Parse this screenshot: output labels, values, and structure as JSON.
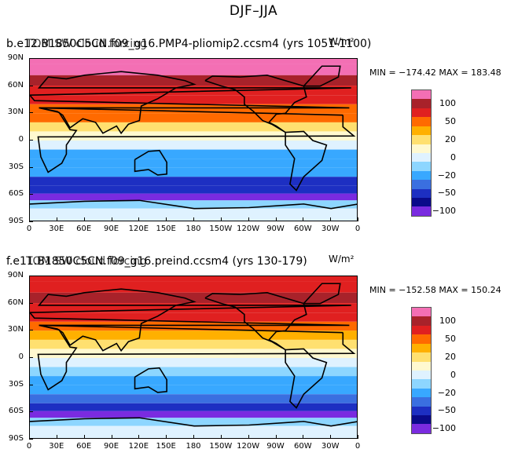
{
  "figure_title": "DJF–JJA",
  "chart_data": [
    {
      "type": "heatmap",
      "title_left": "b.e12.B1850C5CN.f09_g16.PMP4-pliomip2.ccsm4 (yrs 1051-1100)",
      "title_overlay": "TOM SW cloud forcing",
      "title_right": "W/m²",
      "min": -174.42,
      "max": 183.48,
      "min_label": "MIN = −174.42  MAX = 183.48",
      "x_ticks": [
        "0",
        "30E",
        "60E",
        "90E",
        "120E",
        "150E",
        "180",
        "150W",
        "120W",
        "90W",
        "60W",
        "30W",
        "0"
      ],
      "y_ticks": [
        "90N",
        "60N",
        "30N",
        "0",
        "30S",
        "60S",
        "90S"
      ],
      "zonal_bands": [
        {
          "lat": 90,
          "value": 150
        },
        {
          "lat": 78,
          "value": 120
        },
        {
          "lat": 66,
          "value": 90
        },
        {
          "lat": 55,
          "value": 75
        },
        {
          "lat": 45,
          "value": 70
        },
        {
          "lat": 35,
          "value": 45
        },
        {
          "lat": 25,
          "value": 35
        },
        {
          "lat": 15,
          "value": 15
        },
        {
          "lat": 5,
          "value": 5
        },
        {
          "lat": -5,
          "value": -10
        },
        {
          "lat": -15,
          "value": -25
        },
        {
          "lat": -25,
          "value": -30
        },
        {
          "lat": -35,
          "value": -35
        },
        {
          "lat": -45,
          "value": -55
        },
        {
          "lat": -55,
          "value": -80
        },
        {
          "lat": -62,
          "value": -120
        },
        {
          "lat": -70,
          "value": -20
        },
        {
          "lat": -80,
          "value": -5
        }
      ]
    },
    {
      "type": "heatmap",
      "title_left": "f.e11.B1850C5CN.f09_g16.preind.ccsm4 (yrs 130-179)",
      "title_overlay": "TOM SW cloud forcing",
      "title_right": "W/m²",
      "min": -152.58,
      "max": 150.24,
      "min_label": "MIN = −152.58  MAX = 150.24",
      "x_ticks": [
        "0",
        "30E",
        "60E",
        "90E",
        "120E",
        "150E",
        "180",
        "150W",
        "120W",
        "90W",
        "60W",
        "30W",
        "0"
      ],
      "y_ticks": [
        "90N",
        "60N",
        "30N",
        "0",
        "30S",
        "60S",
        "90S"
      ],
      "zonal_bands": [
        {
          "lat": 90,
          "value": 60
        },
        {
          "lat": 78,
          "value": 75
        },
        {
          "lat": 66,
          "value": 80
        },
        {
          "lat": 55,
          "value": 70
        },
        {
          "lat": 45,
          "value": 65
        },
        {
          "lat": 35,
          "value": 40
        },
        {
          "lat": 25,
          "value": 30
        },
        {
          "lat": 15,
          "value": 12
        },
        {
          "lat": 5,
          "value": 3
        },
        {
          "lat": -5,
          "value": -10
        },
        {
          "lat": -15,
          "value": -20
        },
        {
          "lat": -25,
          "value": -25
        },
        {
          "lat": -35,
          "value": -30
        },
        {
          "lat": -45,
          "value": -50
        },
        {
          "lat": -55,
          "value": -75
        },
        {
          "lat": -62,
          "value": -120
        },
        {
          "lat": -70,
          "value": -15
        },
        {
          "lat": -80,
          "value": -5
        }
      ]
    }
  ],
  "colorbar": {
    "levels": [
      "100",
      "50",
      "20",
      "0",
      "−20",
      "−50",
      "−100"
    ],
    "colors": [
      "#f36fb4",
      "#a8222a",
      "#e02020",
      "#ff6a00",
      "#ffb000",
      "#ffe070",
      "#fff9d0",
      "#dff2ff",
      "#8dd6ff",
      "#38a8ff",
      "#3a6fe0",
      "#1d2fc2",
      "#0a0a8a",
      "#7a2be0"
    ],
    "bounds": [
      120,
      80,
      50,
      35,
      20,
      10,
      0,
      -10,
      -20,
      -35,
      -50,
      -80,
      -100,
      -150
    ]
  }
}
